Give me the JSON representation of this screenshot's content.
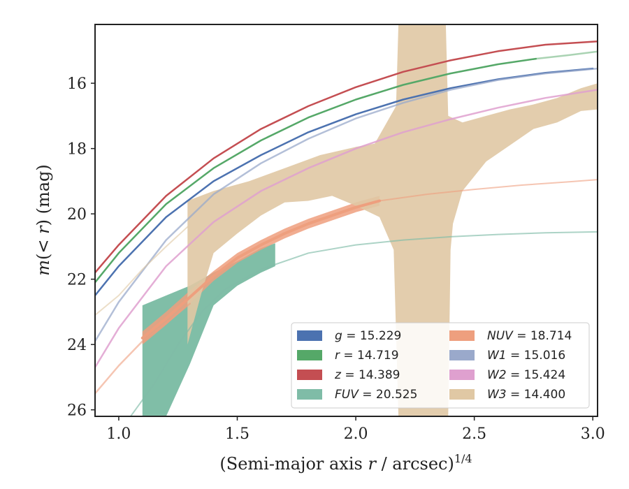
{
  "chart_data": {
    "type": "line",
    "title": "",
    "xlabel": "(Semi-major axis r / arcsec)^{1/4}",
    "xlabel_parts": {
      "prefix": "(Semi-major axis ",
      "var": "r",
      "suffix": " / arcsec)",
      "exponent": "1/4"
    },
    "ylabel": "m(<r) (mag)",
    "ylabel_parts": {
      "m": "m",
      "lparen": "(",
      "lt": "< ",
      "r": "r",
      "rparen": ")",
      "unit": " (mag)"
    },
    "xlim": [
      0.9,
      3.02
    ],
    "ylim": [
      26.2,
      14.2
    ],
    "y_inverted": true,
    "x_ticks": [
      1.0,
      1.5,
      2.0,
      2.5,
      3.0
    ],
    "x_tick_labels": [
      "1.0",
      "1.5",
      "2.0",
      "2.5",
      "3.0"
    ],
    "y_ticks": [
      16,
      18,
      20,
      22,
      24,
      26
    ],
    "y_tick_labels": [
      "16",
      "18",
      "20",
      "22",
      "24",
      "26"
    ],
    "grid": false,
    "legend_position": "lower-right",
    "legend": [
      {
        "var": "g",
        "eq": " = 15.229",
        "color": "#4c72b0"
      },
      {
        "var": "r",
        "eq": " = 14.719",
        "color": "#55a868"
      },
      {
        "var": "z",
        "eq": " = 14.389",
        "color": "#c44e52"
      },
      {
        "var": "FUV",
        "eq": " = 20.525",
        "color": "#7fbca7"
      },
      {
        "var": "NUV",
        "eq": " = 18.714",
        "color": "#ee9f7e"
      },
      {
        "var": "W1",
        "eq": " = 15.016",
        "color": "#9aa9cb"
      },
      {
        "var": "W2",
        "eq": " = 15.424",
        "color": "#dfa0cf"
      },
      {
        "var": "W3",
        "eq": " = 14.400",
        "color": "#e0c8a4"
      }
    ],
    "series": [
      {
        "name": "g",
        "color": "#4c72b0",
        "width": 2.5,
        "x": [
          0.9,
          1.0,
          1.2,
          1.4,
          1.6,
          1.8,
          2.0,
          2.2,
          2.4,
          2.6,
          2.8,
          3.0
        ],
        "y": [
          22.5,
          21.6,
          20.1,
          19.0,
          18.2,
          17.5,
          16.95,
          16.5,
          16.15,
          15.88,
          15.68,
          15.55
        ]
      },
      {
        "name": "r",
        "color": "#55a868",
        "width": 2.5,
        "x": [
          0.9,
          1.0,
          1.2,
          1.4,
          1.6,
          1.8,
          2.0,
          2.2,
          2.4,
          2.6,
          2.76
        ],
        "y": [
          22.1,
          21.2,
          19.7,
          18.6,
          17.75,
          17.05,
          16.5,
          16.05,
          15.7,
          15.42,
          15.25
        ]
      },
      {
        "name": "r-extrapolated",
        "color": "#55a868",
        "width": 2.5,
        "alpha": 0.5,
        "x": [
          2.76,
          2.9,
          3.02
        ],
        "y": [
          15.25,
          15.14,
          15.03
        ]
      },
      {
        "name": "z",
        "color": "#c44e52",
        "width": 2.5,
        "x": [
          0.9,
          1.0,
          1.2,
          1.4,
          1.6,
          1.8,
          2.0,
          2.2,
          2.4,
          2.6,
          2.8,
          3.02
        ],
        "y": [
          21.8,
          20.95,
          19.45,
          18.3,
          17.4,
          16.7,
          16.12,
          15.65,
          15.3,
          15.02,
          14.82,
          14.72
        ]
      },
      {
        "name": "W1",
        "color": "#9aa9cb",
        "width": 2.5,
        "alpha": 0.75,
        "x": [
          0.9,
          1.0,
          1.2,
          1.4,
          1.6,
          1.8,
          2.0,
          2.2,
          2.4,
          2.6,
          2.8,
          3.02
        ],
        "y": [
          23.9,
          22.7,
          20.8,
          19.4,
          18.45,
          17.7,
          17.08,
          16.6,
          16.2,
          15.9,
          15.7,
          15.55
        ]
      },
      {
        "name": "W2",
        "color": "#dfa0cf",
        "width": 2.5,
        "alpha": 0.85,
        "x": [
          0.9,
          1.0,
          1.2,
          1.4,
          1.6,
          1.8,
          2.0,
          2.2,
          2.4,
          2.6,
          2.8,
          3.02
        ],
        "y": [
          24.7,
          23.5,
          21.6,
          20.25,
          19.3,
          18.6,
          18.0,
          17.5,
          17.1,
          16.75,
          16.45,
          16.2
        ]
      },
      {
        "name": "NUV-extrapolated",
        "color": "#ee9f7e",
        "width": 2.5,
        "alpha": 0.6,
        "x": [
          0.9,
          1.0,
          1.1,
          1.2,
          1.3
        ],
        "y": [
          25.5,
          24.65,
          23.9,
          23.35,
          22.75
        ]
      },
      {
        "name": "NUV",
        "color": "#ee9f7e",
        "width": 4,
        "x": [
          1.1,
          1.2,
          1.3,
          1.4,
          1.5,
          1.6,
          1.7,
          1.8,
          1.9,
          2.0,
          2.1
        ],
        "y": [
          23.8,
          23.2,
          22.55,
          21.9,
          21.35,
          20.95,
          20.6,
          20.3,
          20.05,
          19.8,
          19.6
        ]
      },
      {
        "name": "NUV-tail",
        "color": "#ee9f7e",
        "width": 2,
        "alpha": 0.6,
        "x": [
          2.1,
          2.3,
          2.5,
          2.7,
          2.9,
          3.02
        ],
        "y": [
          19.6,
          19.4,
          19.25,
          19.12,
          19.02,
          18.95
        ]
      },
      {
        "name": "FUV",
        "color": "#7fbca7",
        "width": 2,
        "alpha": 0.65,
        "x": [
          1.05,
          1.15,
          1.25,
          1.35,
          1.45,
          1.6,
          1.8,
          2.0,
          2.2,
          2.4,
          2.6,
          2.8,
          3.02
        ],
        "y": [
          26.2,
          25.2,
          24.0,
          23.0,
          22.3,
          21.7,
          21.2,
          20.95,
          20.8,
          20.7,
          20.63,
          20.58,
          20.55
        ]
      },
      {
        "name": "W3-extrapolated",
        "color": "#e0c8a4",
        "width": 2,
        "alpha": 0.6,
        "x": [
          0.9,
          1.0,
          1.1,
          1.2,
          1.29
        ],
        "y": [
          23.1,
          22.5,
          21.7,
          21.0,
          20.4
        ]
      }
    ],
    "bands": [
      {
        "name": "FUV-band",
        "color": "#55a88a",
        "alpha": 0.75,
        "upper": {
          "x": [
            1.1,
            1.2,
            1.3,
            1.4,
            1.5,
            1.6,
            1.66
          ],
          "y": [
            22.8,
            22.5,
            22.2,
            21.8,
            21.45,
            21.05,
            20.9
          ]
        },
        "lower": {
          "x": [
            1.1,
            1.2,
            1.3,
            1.4,
            1.5,
            1.6,
            1.66
          ],
          "y": [
            26.2,
            26.2,
            24.6,
            22.8,
            22.2,
            21.8,
            21.6
          ]
        }
      },
      {
        "name": "NUV-band",
        "color": "#ee9f7e",
        "alpha": 0.85,
        "upper": {
          "x": [
            1.1,
            1.2,
            1.3,
            1.4,
            1.5,
            1.6,
            1.7,
            1.8,
            1.9,
            2.0,
            2.1
          ],
          "y": [
            23.6,
            23.0,
            22.35,
            21.75,
            21.2,
            20.8,
            20.45,
            20.15,
            19.9,
            19.65,
            19.45
          ]
        },
        "lower": {
          "x": [
            1.1,
            1.2,
            1.3,
            1.4,
            1.5,
            1.6,
            1.7,
            1.8,
            1.9,
            2.0,
            2.1
          ],
          "y": [
            24.0,
            23.4,
            22.75,
            22.05,
            21.5,
            21.1,
            20.75,
            20.45,
            20.2,
            19.95,
            19.75
          ]
        }
      },
      {
        "name": "W3-band",
        "color": "#e0c8a4",
        "alpha": 0.9,
        "upper": {
          "x": [
            1.29,
            1.4,
            1.55,
            1.7,
            1.85,
            2.0,
            2.08,
            2.17,
            2.18,
            2.2,
            2.22,
            2.38,
            2.39,
            2.45,
            2.55,
            2.65,
            2.75,
            2.85,
            2.95,
            3.02
          ],
          "y": [
            19.6,
            19.3,
            19.0,
            18.6,
            18.2,
            17.95,
            17.85,
            16.7,
            14.2,
            14.2,
            14.2,
            14.2,
            17.0,
            17.2,
            17.0,
            16.8,
            16.65,
            16.45,
            16.15,
            16.0
          ]
        },
        "lower": {
          "x": [
            3.02,
            2.95,
            2.85,
            2.75,
            2.65,
            2.55,
            2.45,
            2.41,
            2.4,
            2.39,
            2.38,
            2.36,
            2.18,
            2.16,
            2.1,
            2.0,
            1.9,
            1.8,
            1.7,
            1.6,
            1.5,
            1.4,
            1.35,
            1.29
          ],
          "y": [
            16.8,
            16.85,
            17.2,
            17.4,
            17.9,
            18.4,
            19.3,
            20.3,
            21.1,
            26.2,
            26.2,
            26.2,
            26.2,
            21.1,
            20.1,
            19.75,
            19.45,
            19.6,
            19.65,
            20.05,
            20.6,
            21.2,
            22.4,
            24.0
          ]
        }
      }
    ]
  }
}
